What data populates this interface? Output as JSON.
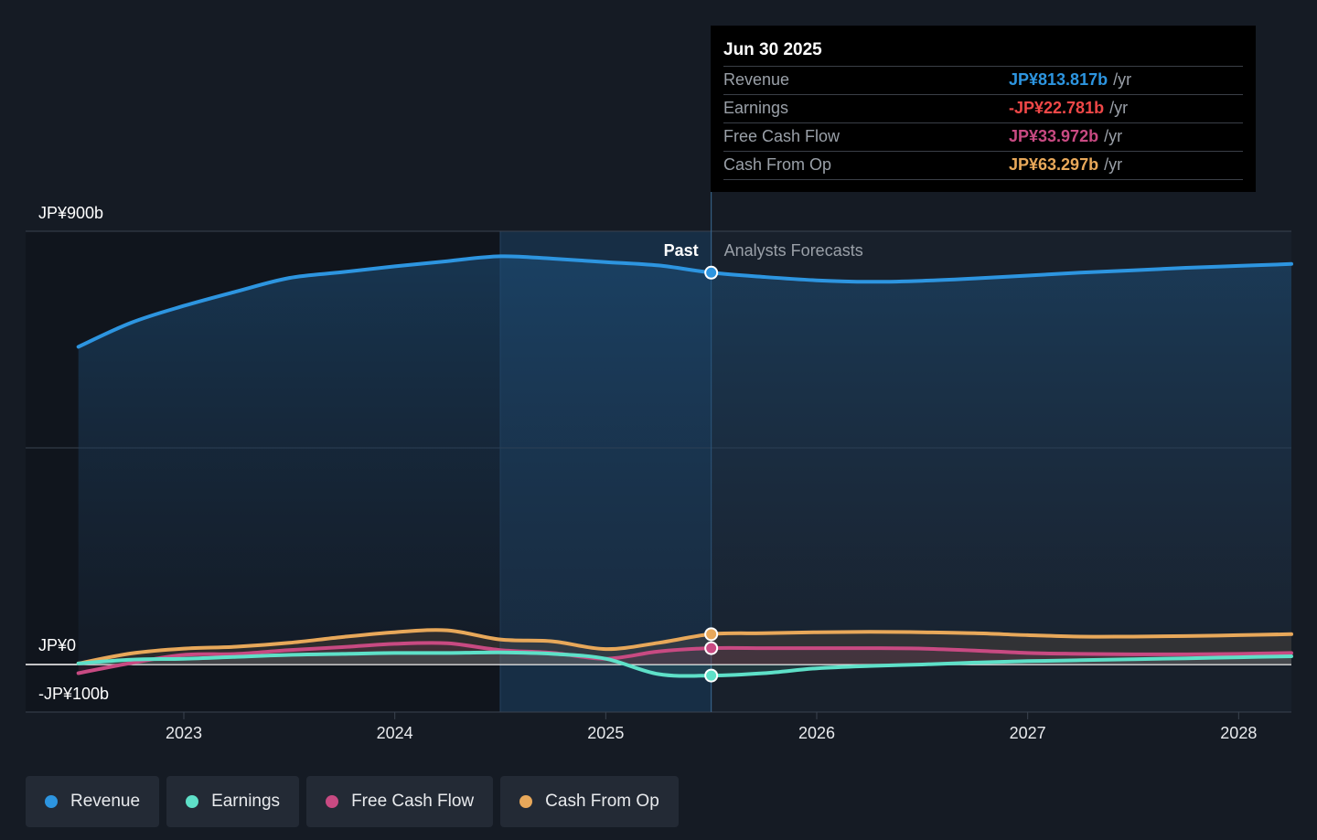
{
  "chart_data": {
    "type": "line",
    "title": "",
    "xlabel": "",
    "ylabel": "",
    "ylim": [
      -100,
      900
    ],
    "y_tick_labels": [
      "JP¥900b",
      "JP¥0",
      "-JP¥100b"
    ],
    "y_ticks": [
      900,
      0,
      -100
    ],
    "x_tick_labels": [
      "2023",
      "2024",
      "2025",
      "2026",
      "2027",
      "2028"
    ],
    "x_ticks": [
      2023.0,
      2024.0,
      2025.0,
      2026.0,
      2027.0,
      2028.0
    ],
    "x_range": [
      2022.25,
      2028.25
    ],
    "past_label": "Past",
    "forecast_label": "Analysts Forecasts",
    "divider_x": 2025.5,
    "highlight_start_x": 2024.5,
    "colors": {
      "revenue": "#2d95e0",
      "earnings": "#5ee0c8",
      "free_cash_flow": "#c84a82",
      "cash_from_op": "#e8a85a",
      "earnings_text": "#f04848",
      "grid": "#3a4350",
      "zero_line": "#ffffff"
    },
    "series": [
      {
        "name": "Revenue",
        "key": "revenue",
        "x": [
          2022.5,
          2022.75,
          2023.0,
          2023.25,
          2023.5,
          2023.75,
          2024.0,
          2024.25,
          2024.5,
          2024.75,
          2025.0,
          2025.25,
          2025.5,
          2025.75,
          2026.0,
          2026.25,
          2026.5,
          2026.75,
          2027.0,
          2027.25,
          2027.5,
          2027.75,
          2028.0,
          2028.25
        ],
        "y": [
          660,
          710,
          745,
          775,
          803,
          815,
          827,
          838,
          848,
          843,
          836,
          829,
          814,
          805,
          798,
          795,
          797,
          802,
          808,
          814,
          819,
          824,
          828,
          832
        ]
      },
      {
        "name": "Earnings",
        "key": "earnings",
        "x": [
          2022.5,
          2022.75,
          2023.0,
          2023.25,
          2023.5,
          2023.75,
          2024.0,
          2024.25,
          2024.5,
          2024.75,
          2025.0,
          2025.25,
          2025.5,
          2025.75,
          2026.0,
          2026.25,
          2026.5,
          2026.75,
          2027.0,
          2027.25,
          2027.5,
          2027.75,
          2028.0,
          2028.25
        ],
        "y": [
          2,
          10,
          12,
          16,
          20,
          22,
          24,
          24,
          25,
          22,
          12,
          -20,
          -23,
          -18,
          -8,
          -3,
          0,
          4,
          7,
          9,
          11,
          13,
          15,
          17
        ]
      },
      {
        "name": "Free Cash Flow",
        "key": "free_cash_flow",
        "x": [
          2022.5,
          2022.75,
          2023.0,
          2023.25,
          2023.5,
          2023.75,
          2024.0,
          2024.25,
          2024.5,
          2024.75,
          2025.0,
          2025.25,
          2025.5,
          2025.75,
          2026.0,
          2026.25,
          2026.5,
          2026.75,
          2027.0,
          2027.25,
          2027.5,
          2027.75,
          2028.0,
          2028.25
        ],
        "y": [
          -18,
          3,
          20,
          22,
          30,
          36,
          43,
          44,
          30,
          24,
          12,
          27,
          34,
          34,
          34,
          34,
          33,
          29,
          24,
          22,
          21,
          21,
          22,
          24
        ]
      },
      {
        "name": "Cash From Op",
        "key": "cash_from_op",
        "x": [
          2022.5,
          2022.75,
          2023.0,
          2023.25,
          2023.5,
          2023.75,
          2024.0,
          2024.25,
          2024.5,
          2024.75,
          2025.0,
          2025.25,
          2025.5,
          2025.75,
          2026.0,
          2026.25,
          2026.5,
          2026.75,
          2027.0,
          2027.25,
          2027.5,
          2027.75,
          2028.0,
          2028.25
        ],
        "y": [
          2,
          23,
          33,
          37,
          45,
          57,
          67,
          71,
          52,
          48,
          32,
          45,
          63,
          65,
          67,
          68,
          67,
          65,
          61,
          58,
          58,
          59,
          61,
          63
        ]
      }
    ],
    "highlight_point_x": 2025.5,
    "tooltip": {
      "date": "Jun 30 2025",
      "unit": "/yr",
      "rows": [
        {
          "label": "Revenue",
          "value": "JP¥813.817b",
          "key": "revenue"
        },
        {
          "label": "Earnings",
          "value": "-JP¥22.781b",
          "key": "earnings_text"
        },
        {
          "label": "Free Cash Flow",
          "value": "JP¥33.972b",
          "key": "free_cash_flow"
        },
        {
          "label": "Cash From Op",
          "value": "JP¥63.297b",
          "key": "cash_from_op"
        }
      ]
    },
    "legend": [
      {
        "label": "Revenue",
        "key": "revenue"
      },
      {
        "label": "Earnings",
        "key": "earnings"
      },
      {
        "label": "Free Cash Flow",
        "key": "free_cash_flow"
      },
      {
        "label": "Cash From Op",
        "key": "cash_from_op"
      }
    ]
  }
}
